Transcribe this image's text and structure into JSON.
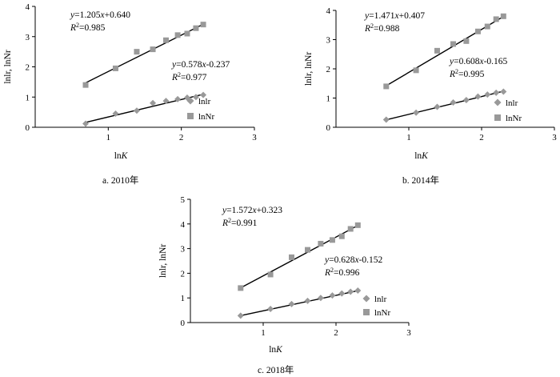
{
  "chart_data": [
    {
      "type": "scatter",
      "caption": "a.  2010年",
      "xlabel_main": "ln",
      "xlabel_italic": "K",
      "ylabel": "lnlr, lnNr",
      "xlim": [
        0,
        3
      ],
      "ylim": [
        0,
        4
      ],
      "xticks": [
        "1",
        "2",
        "3"
      ],
      "yticks": [
        "0",
        "1",
        "2",
        "3",
        "4"
      ],
      "legend_position": "right",
      "series": [
        {
          "name": "lnlr",
          "marker": "diamond",
          "color": "#999999",
          "x": [
            0.69,
            1.1,
            1.39,
            1.61,
            1.79,
            1.95,
            2.08,
            2.2,
            2.3
          ],
          "y": [
            0.12,
            0.45,
            0.55,
            0.8,
            0.87,
            0.93,
            0.98,
            1.0,
            1.07
          ],
          "fit": {
            "slope": 0.578,
            "intercept": -0.237,
            "eq_coef": "0.578",
            "eq_rest": "-0.237",
            "r2": "0.977"
          }
        },
        {
          "name": "lnNr",
          "marker": "square",
          "color": "#999999",
          "x": [
            0.69,
            1.1,
            1.39,
            1.61,
            1.79,
            1.95,
            2.08,
            2.2,
            2.3
          ],
          "y": [
            1.4,
            1.95,
            2.5,
            2.58,
            2.88,
            3.05,
            3.1,
            3.28,
            3.4
          ],
          "fit": {
            "slope": 1.205,
            "intercept": 0.64,
            "eq_coef": "1.205",
            "eq_rest": "+0.640",
            "r2": "0.985"
          }
        }
      ]
    },
    {
      "type": "scatter",
      "caption": "b.  2014年",
      "xlabel_main": "ln",
      "xlabel_italic": "K",
      "ylabel": "lnlr, lnNr",
      "xlim": [
        0,
        3
      ],
      "ylim": [
        0,
        4
      ],
      "xticks": [
        "1",
        "2",
        "3"
      ],
      "yticks": [
        "0",
        "1",
        "2",
        "3",
        "4"
      ],
      "legend_position": "right",
      "series": [
        {
          "name": "lnlr",
          "marker": "diamond",
          "color": "#999999",
          "x": [
            0.69,
            1.1,
            1.39,
            1.61,
            1.79,
            1.95,
            2.08,
            2.2,
            2.3
          ],
          "y": [
            0.26,
            0.5,
            0.7,
            0.85,
            0.93,
            1.05,
            1.12,
            1.18,
            1.22
          ],
          "fit": {
            "slope": 0.608,
            "intercept": -0.165,
            "eq_coef": "0.608",
            "eq_rest": "-0.165",
            "r2": "0.995"
          }
        },
        {
          "name": "lnNr",
          "marker": "square",
          "color": "#999999",
          "x": [
            0.69,
            1.1,
            1.39,
            1.61,
            1.79,
            1.95,
            2.08,
            2.2,
            2.3
          ],
          "y": [
            1.4,
            1.95,
            2.62,
            2.85,
            2.95,
            3.28,
            3.45,
            3.7,
            3.8
          ],
          "fit": {
            "slope": 1.471,
            "intercept": 0.407,
            "eq_coef": "1.471",
            "eq_rest": "+0.407",
            "r2": "0.988"
          }
        }
      ]
    },
    {
      "type": "scatter",
      "caption": "c.  2018年",
      "xlabel_main": "ln",
      "xlabel_italic": "K",
      "ylabel": "lnlr, lnNr",
      "xlim": [
        0,
        3
      ],
      "ylim": [
        0,
        5
      ],
      "xticks": [
        "1",
        "2",
        "3"
      ],
      "yticks": [
        "0",
        "1",
        "2",
        "3",
        "4",
        "5"
      ],
      "legend_position": "right",
      "series": [
        {
          "name": "lnlr",
          "marker": "diamond",
          "color": "#999999",
          "x": [
            0.69,
            1.1,
            1.39,
            1.61,
            1.79,
            1.95,
            2.08,
            2.2,
            2.3
          ],
          "y": [
            0.28,
            0.55,
            0.75,
            0.88,
            1.0,
            1.1,
            1.18,
            1.25,
            1.3
          ],
          "fit": {
            "slope": 0.628,
            "intercept": -0.152,
            "eq_coef": "0.628",
            "eq_rest": "-0.152",
            "r2": "0.996"
          }
        },
        {
          "name": "lnNr",
          "marker": "square",
          "color": "#999999",
          "x": [
            0.69,
            1.1,
            1.39,
            1.61,
            1.79,
            1.95,
            2.08,
            2.2,
            2.3
          ],
          "y": [
            1.4,
            1.95,
            2.65,
            2.95,
            3.2,
            3.35,
            3.5,
            3.8,
            3.95
          ],
          "fit": {
            "slope": 1.572,
            "intercept": 0.323,
            "eq_coef": "1.572",
            "eq_rest": "+0.323",
            "r2": "0.991"
          }
        }
      ]
    }
  ]
}
